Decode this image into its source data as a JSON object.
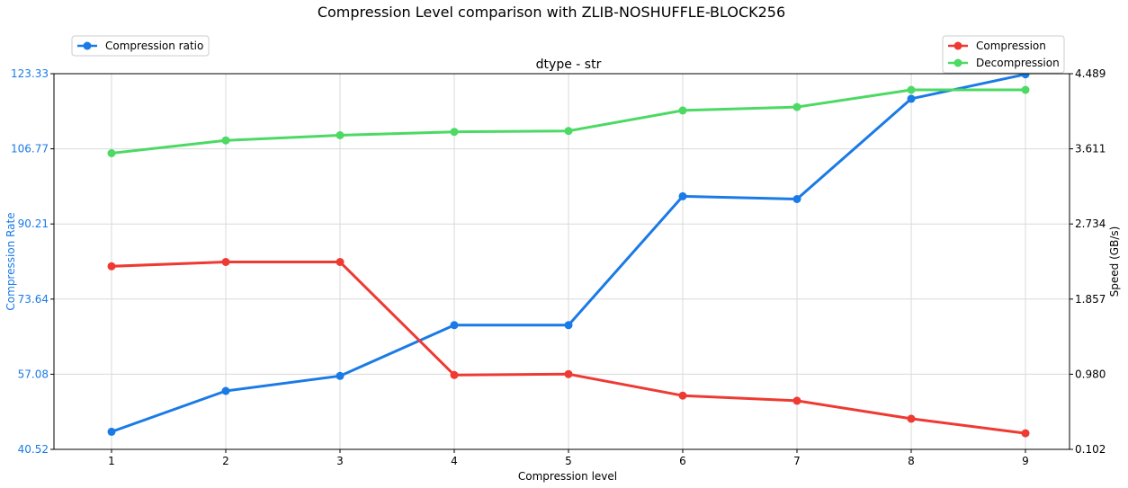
{
  "chart_data": {
    "type": "line",
    "title": "Compression Level comparison with ZLIB-NOSHUFFLE-BLOCK256",
    "subtitle": "dtype - str",
    "xlabel": "Compression level",
    "ylabel_left": "Compression Rate",
    "ylabel_right": "Speed (GB/s)",
    "x": [
      1,
      2,
      3,
      4,
      5,
      6,
      7,
      8,
      9
    ],
    "y_left_range": [
      40.52,
      123.33
    ],
    "y_left_ticks": [
      "40.52",
      "57.08",
      "73.64",
      "90.21",
      "106.77",
      "123.33"
    ],
    "y_right_range": [
      0.102,
      4.489
    ],
    "y_right_ticks": [
      "0.102",
      "0.980",
      "1.857",
      "2.734",
      "3.611",
      "4.489"
    ],
    "grid": true,
    "legend_left": {
      "position": "top-left",
      "entries": [
        "Compression ratio"
      ]
    },
    "legend_right": {
      "position": "top-right",
      "entries": [
        "Compression",
        "Decompression"
      ]
    },
    "series": [
      {
        "name": "Compression ratio",
        "axis": "left",
        "color": "#1a7ae6",
        "values": [
          44.4,
          53.4,
          56.7,
          67.9,
          67.9,
          96.3,
          95.7,
          117.8,
          123.2
        ]
      },
      {
        "name": "Compression",
        "axis": "right",
        "color": "#ee3a32",
        "values": [
          2.24,
          2.29,
          2.29,
          0.97,
          0.98,
          0.73,
          0.67,
          0.46,
          0.29
        ]
      },
      {
        "name": "Decompression",
        "axis": "right",
        "color": "#4cd964",
        "values": [
          3.56,
          3.71,
          3.77,
          3.81,
          3.82,
          4.06,
          4.1,
          4.3,
          4.3
        ]
      }
    ]
  }
}
